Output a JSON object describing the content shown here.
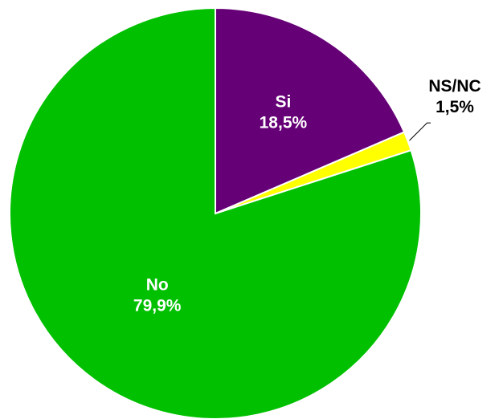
{
  "chart_data": {
    "type": "pie",
    "title": "",
    "slices": [
      {
        "label": "Si",
        "value": 18.5,
        "value_text": "18,5%",
        "color": "#660077",
        "label_color": "#ffffff",
        "label_position": "inside"
      },
      {
        "label": "NS/NC",
        "value": 1.5,
        "value_text": "1,5%",
        "color": "#ffff00",
        "label_color": "#000000",
        "label_position": "outside"
      },
      {
        "label": "No",
        "value": 79.9,
        "value_text": "79,9%",
        "color": "#00c000",
        "label_color": "#ffffff",
        "label_position": "inside"
      }
    ],
    "start_angle": "12 o'clock",
    "direction": "clockwise",
    "legend": "none"
  }
}
